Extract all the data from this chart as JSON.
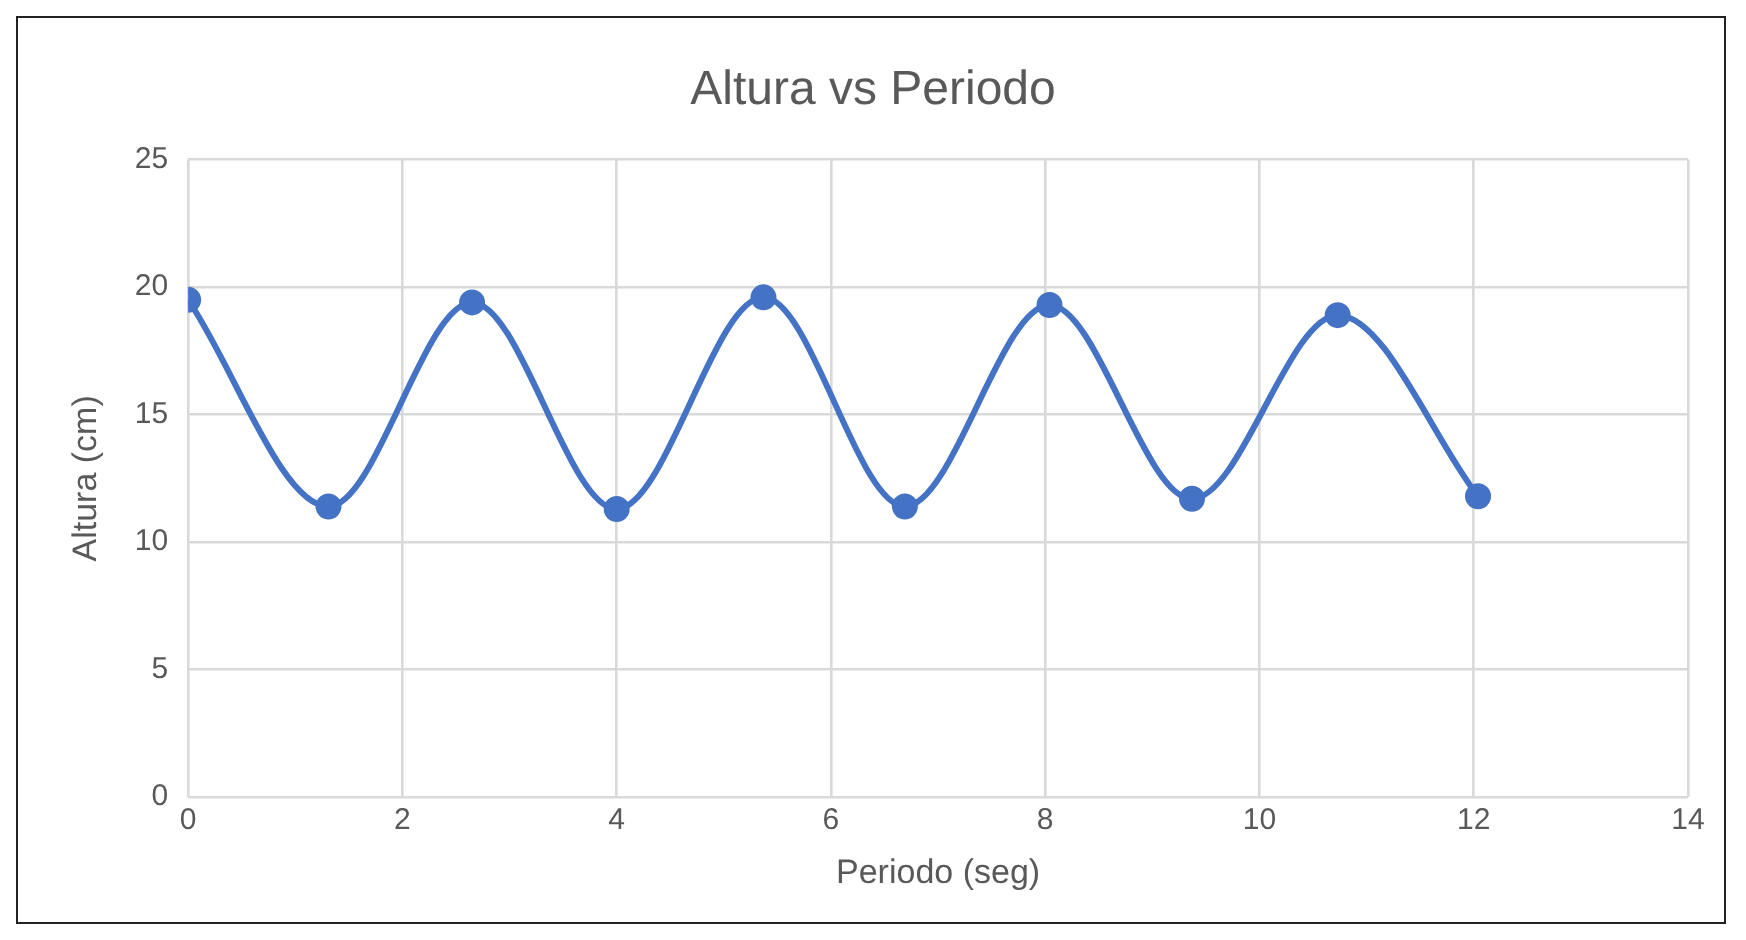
{
  "chart_data": {
    "type": "line",
    "title": "Altura vs Periodo",
    "xlabel": "Periodo (seg)",
    "ylabel": "Altura (cm)",
    "x": [
      0,
      1.31,
      2.65,
      4.0,
      5.37,
      6.69,
      8.04,
      9.37,
      10.73,
      12.04
    ],
    "series": [
      {
        "color": "#4472c4",
        "values": [
          19.5,
          11.4,
          19.4,
          11.3,
          19.6,
          11.4,
          19.3,
          11.7,
          18.9,
          11.8
        ]
      }
    ],
    "xlim": [
      0,
      14
    ],
    "xticks": [
      0,
      2,
      4,
      6,
      8,
      10,
      12,
      14
    ],
    "ylim": [
      0,
      25
    ],
    "yticks": [
      0,
      5,
      10,
      15,
      20,
      25
    ],
    "grid": true,
    "legend": false,
    "marker": "circle",
    "line_style": "solid"
  }
}
